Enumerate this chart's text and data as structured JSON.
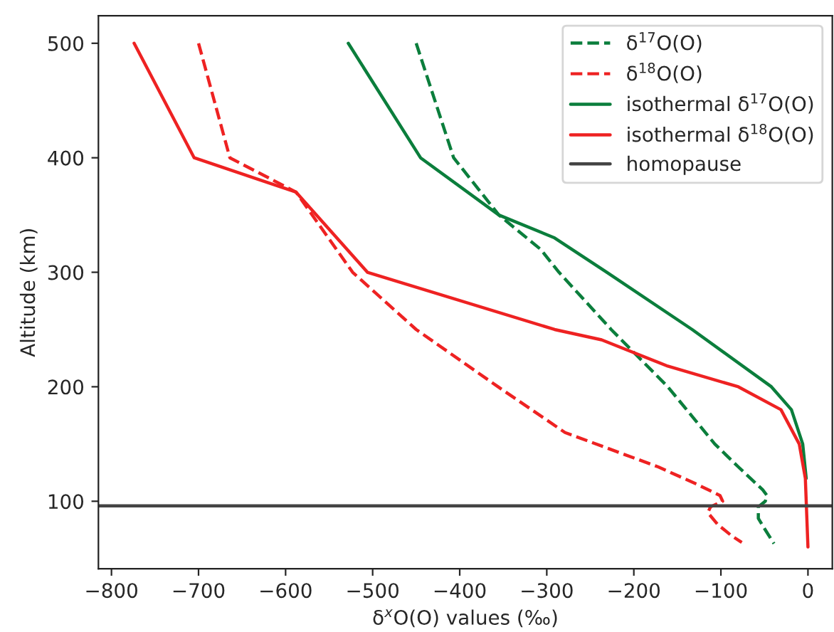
{
  "chart_data": {
    "type": "line",
    "xlabel": "δ$^{x}$O(O) values (‰)",
    "ylabel": "Altitude (km)",
    "series": [
      {
        "name": "δ$^{17}$O(O)",
        "color": "#0b7e3c",
        "line_style": "dashed",
        "x": [
          -450,
          -407,
          -355,
          -307,
          -286,
          -226,
          -161,
          -107,
          -80,
          -52,
          -47,
          -49,
          -57,
          -57,
          -49,
          -39
        ],
        "values": [
          500,
          400,
          350,
          320,
          300,
          250,
          200,
          150,
          130,
          110,
          105,
          100,
          95,
          85,
          75,
          63
        ]
      },
      {
        "name": "δ$^{18}$O(O)",
        "color": "#ee2222",
        "line_style": "dashed",
        "x": [
          -700,
          -664,
          -588,
          -523,
          -450,
          -356,
          -279,
          -172,
          -128,
          -101,
          -98,
          -112,
          -115,
          -104,
          -88,
          -76
        ],
        "values": [
          500,
          400,
          370,
          300,
          250,
          200,
          160,
          130,
          115,
          105,
          100,
          95,
          90,
          80,
          70,
          64
        ]
      },
      {
        "name": "isothermal δ$^{17}$O(O)",
        "color": "#0b7e3c",
        "line_style": "solid",
        "x": [
          -528,
          -445,
          -355,
          -291,
          -231,
          -133,
          -42,
          -19,
          -6,
          -2
        ],
        "values": [
          500,
          400,
          350,
          330,
          300,
          250,
          200,
          180,
          150,
          120
        ]
      },
      {
        "name": "isothermal δ$^{18}$O(O)",
        "color": "#ee2222",
        "line_style": "solid",
        "x": [
          -774,
          -705,
          -588,
          -506,
          -291,
          -237,
          -161,
          -80,
          -31,
          -10,
          -3,
          0
        ],
        "values": [
          500,
          400,
          370,
          300,
          250,
          241,
          218,
          200,
          180,
          150,
          120,
          60
        ]
      }
    ],
    "ref_lines": [
      {
        "axis": "y",
        "value": 96,
        "label": "homopause",
        "color": "#444444"
      }
    ],
    "xlim": [
      -815,
      28
    ],
    "ylim": [
      41,
      524
    ],
    "xticks": [
      -800,
      -700,
      -600,
      -500,
      -400,
      -300,
      -200,
      -100,
      0
    ],
    "yticks": [
      100,
      200,
      300,
      400,
      500
    ],
    "grid": false,
    "legend": "top right"
  }
}
